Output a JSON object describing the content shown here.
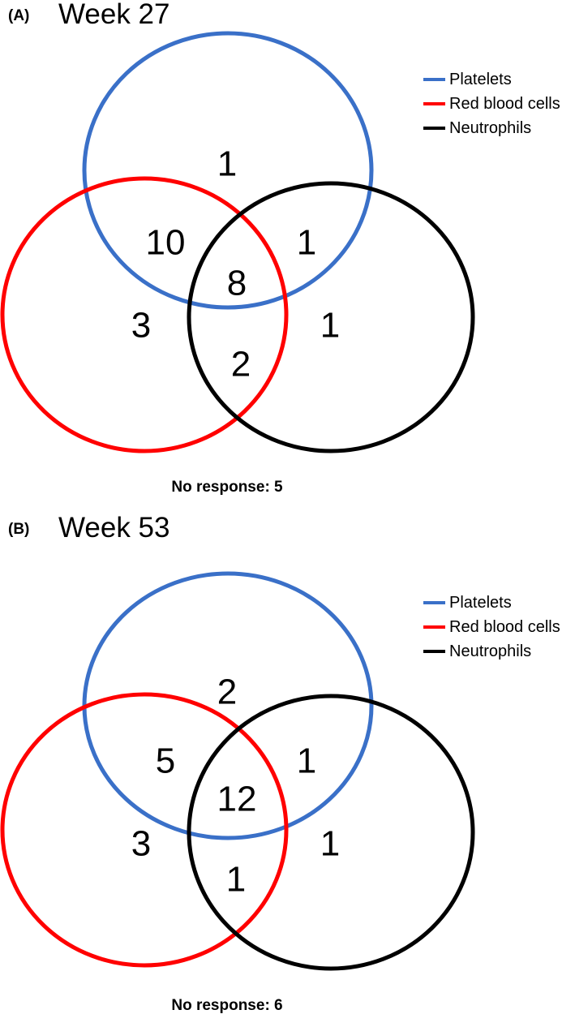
{
  "legend": [
    {
      "label": "Platelets",
      "color": "#3a70c8"
    },
    {
      "label": "Red blood cells",
      "color": "#ff0000"
    },
    {
      "label": "Neutrophils",
      "color": "#000000"
    }
  ],
  "panels": [
    {
      "letter": "(A)",
      "title": "Week 27",
      "counts": {
        "platelets_only": "1",
        "platelets_rbc": "10",
        "platelets_neutrophils": "1",
        "all_three": "8",
        "rbc_only": "3",
        "neutrophils_only": "1",
        "rbc_neutrophils": "2"
      },
      "no_response": "No response: 5"
    },
    {
      "letter": "(B)",
      "title": "Week 53",
      "counts": {
        "platelets_only": "2",
        "platelets_rbc": "5",
        "platelets_neutrophils": "1",
        "all_three": "12",
        "rbc_only": "3",
        "neutrophils_only": "1",
        "rbc_neutrophils": "1"
      },
      "no_response": "No response: 6"
    }
  ]
}
